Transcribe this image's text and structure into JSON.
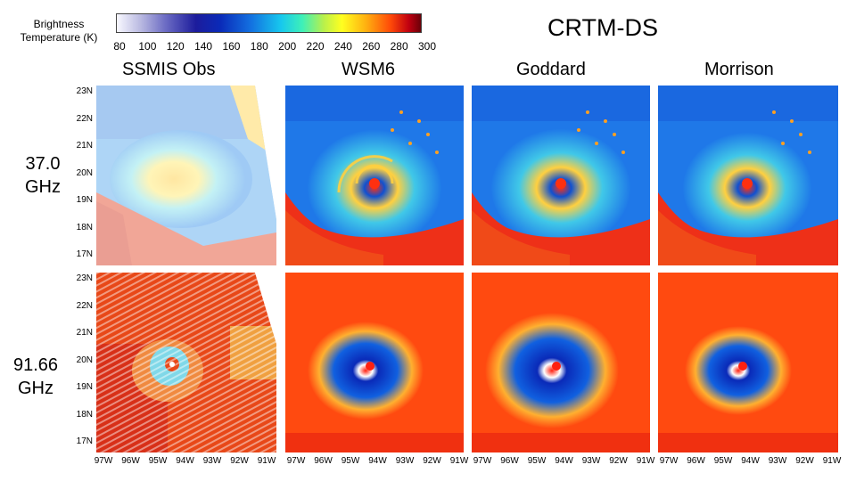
{
  "colorbar": {
    "title_line1": "Brightness",
    "title_line2": "Temperature (K)",
    "ticks": [
      "80",
      "100",
      "120",
      "140",
      "160",
      "180",
      "200",
      "220",
      "240",
      "260",
      "280",
      "300"
    ]
  },
  "group_title": "CRTM-DS",
  "columns": [
    "SSMIS Obs",
    "WSM6",
    "Goddard",
    "Morrison"
  ],
  "rows": [
    {
      "line1": "37.0",
      "line2": "GHz"
    },
    {
      "line1": "91.66",
      "line2": "GHz"
    }
  ],
  "lat_labels": [
    "23N",
    "22N",
    "21N",
    "20N",
    "19N",
    "18N",
    "17N"
  ],
  "lon_labels": [
    "97W",
    "96W",
    "95W",
    "94W",
    "93W",
    "92W",
    "91W"
  ],
  "colors": {
    "cold": "#0a2ab8",
    "blue": "#1f7ae8",
    "cyan": "#22d0f0",
    "yellow": "#ffe030",
    "orange": "#ff8a10",
    "red": "#e82010",
    "darkred": "#b00010"
  }
}
